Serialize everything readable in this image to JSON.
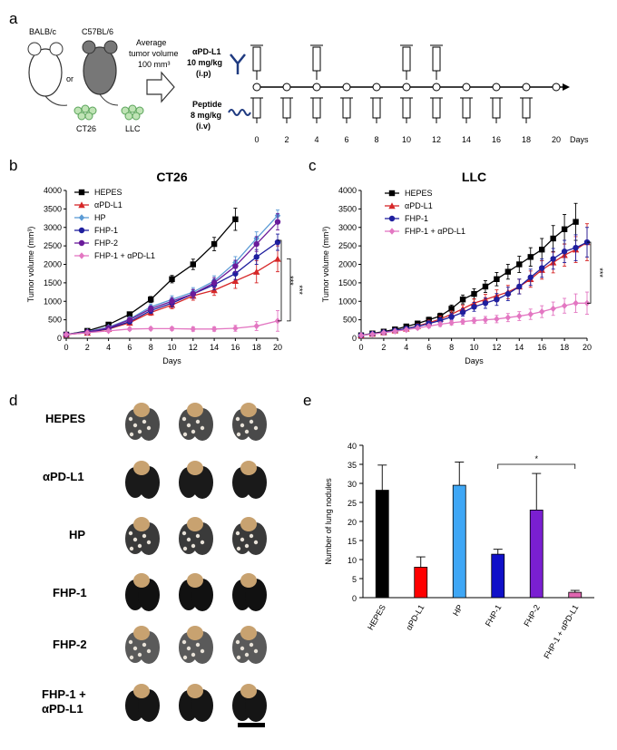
{
  "panels": {
    "a": {
      "label": "a",
      "mouse_strains": [
        "BALB/c",
        "C57BL/6"
      ],
      "or_text": "or",
      "cell_lines": [
        "CT26",
        "LLC"
      ],
      "avg_text": [
        "Average",
        "tumor volume",
        "100 mm³"
      ],
      "antibody": [
        "αPD-L1",
        "10 mg/kg",
        "(i.p)"
      ],
      "peptide": [
        "Peptide",
        "8 mg/kg",
        "(i.v)"
      ],
      "days": [
        "0",
        "2",
        "4",
        "6",
        "8",
        "10",
        "12",
        "14",
        "16",
        "18",
        "20"
      ],
      "days_label": "Days",
      "antibody_days": [
        0,
        4,
        10,
        12
      ]
    },
    "b": {
      "label": "b"
    },
    "c": {
      "label": "c"
    },
    "d": {
      "label": "d",
      "rows": [
        "HEPES",
        "αPD-L1",
        "HP",
        "FHP-1",
        "FHP-2",
        "FHP-1 +",
        "αPD-L1"
      ]
    },
    "e": {
      "label": "e"
    }
  },
  "chart_data": [
    {
      "id": "b",
      "type": "line",
      "title": "CT26",
      "xlabel": "Days",
      "ylabel": "Tumor volume (mm³)",
      "xlim": [
        0,
        20
      ],
      "ylim": [
        0,
        4000
      ],
      "xticks": [
        0,
        2,
        4,
        6,
        8,
        10,
        12,
        14,
        16,
        18,
        20
      ],
      "yticks": [
        0,
        500,
        1000,
        1500,
        2000,
        2500,
        3000,
        3500,
        4000
      ],
      "x": [
        0,
        2,
        4,
        6,
        8,
        10,
        12,
        14,
        16,
        18,
        20
      ],
      "series": [
        {
          "name": "HEPES",
          "color": "#000000",
          "marker": "square",
          "values": [
            100,
            200,
            370,
            650,
            1050,
            1600,
            2000,
            2550,
            3220,
            null,
            null
          ],
          "errors": [
            20,
            30,
            40,
            60,
            80,
            100,
            140,
            180,
            300,
            0,
            0
          ]
        },
        {
          "name": "αPD-L1",
          "color": "#d62728",
          "marker": "triangle",
          "values": [
            100,
            150,
            250,
            420,
            700,
            900,
            1150,
            1300,
            1550,
            1800,
            2150
          ],
          "errors": [
            15,
            25,
            40,
            60,
            80,
            100,
            120,
            140,
            200,
            300,
            350
          ]
        },
        {
          "name": "HP",
          "color": "#5b9bd5",
          "marker": "diamond",
          "values": [
            100,
            180,
            300,
            520,
            850,
            1050,
            1250,
            1550,
            2050,
            2700,
            3320
          ],
          "errors": [
            15,
            30,
            40,
            60,
            80,
            100,
            120,
            140,
            160,
            180,
            150
          ]
        },
        {
          "name": "FHP-1",
          "color": "#1f1f9e",
          "marker": "circle",
          "values": [
            100,
            160,
            260,
            450,
            750,
            950,
            1200,
            1450,
            1750,
            2200,
            2600
          ],
          "errors": [
            15,
            25,
            40,
            60,
            80,
            100,
            120,
            140,
            160,
            200,
            220
          ]
        },
        {
          "name": "FHP-2",
          "color": "#6a1b9a",
          "marker": "circle",
          "values": [
            100,
            170,
            280,
            500,
            800,
            1000,
            1200,
            1500,
            1950,
            2550,
            3150
          ],
          "errors": [
            15,
            25,
            40,
            60,
            80,
            100,
            120,
            140,
            160,
            200,
            220
          ]
        },
        {
          "name": "FHP-1 + αPD-L1",
          "color": "#e377c2",
          "marker": "diamond",
          "values": [
            100,
            150,
            200,
            250,
            260,
            260,
            250,
            250,
            270,
            330,
            470
          ],
          "errors": [
            15,
            20,
            30,
            40,
            40,
            50,
            60,
            60,
            80,
            120,
            280
          ]
        }
      ],
      "annotations": [
        "***",
        "***"
      ]
    },
    {
      "id": "c",
      "type": "line",
      "title": "LLC",
      "xlabel": "Days",
      "ylabel": "Tumor volume (mm³)",
      "xlim": [
        0,
        20
      ],
      "ylim": [
        0,
        4000
      ],
      "xticks": [
        0,
        2,
        4,
        6,
        8,
        10,
        12,
        14,
        16,
        18,
        20
      ],
      "yticks": [
        0,
        500,
        1000,
        1500,
        2000,
        2500,
        3000,
        3500,
        4000
      ],
      "x": [
        0,
        1,
        2,
        3,
        4,
        5,
        6,
        7,
        8,
        9,
        10,
        11,
        12,
        13,
        14,
        15,
        16,
        17,
        18,
        19,
        20
      ],
      "series": [
        {
          "name": "HEPES",
          "color": "#000000",
          "marker": "square",
          "values": [
            80,
            130,
            180,
            240,
            320,
            400,
            500,
            600,
            800,
            1050,
            1200,
            1400,
            1600,
            1800,
            2000,
            2200,
            2400,
            2700,
            2950,
            3150,
            null
          ],
          "errors": [
            20,
            30,
            30,
            40,
            50,
            60,
            70,
            80,
            100,
            120,
            140,
            160,
            180,
            200,
            220,
            250,
            300,
            350,
            400,
            500,
            0
          ]
        },
        {
          "name": "αPD-L1",
          "color": "#d62728",
          "marker": "triangle",
          "values": [
            80,
            120,
            160,
            210,
            260,
            330,
            420,
            520,
            650,
            800,
            950,
            1050,
            1150,
            1250,
            1400,
            1600,
            1850,
            2050,
            2250,
            2400,
            2600
          ],
          "errors": [
            20,
            30,
            30,
            40,
            50,
            60,
            70,
            80,
            90,
            100,
            120,
            140,
            160,
            180,
            200,
            220,
            250,
            280,
            300,
            350,
            500
          ]
        },
        {
          "name": "FHP-1",
          "color": "#1f1f9e",
          "marker": "circle",
          "values": [
            80,
            120,
            160,
            210,
            260,
            320,
            400,
            480,
            580,
            700,
            850,
            950,
            1050,
            1200,
            1400,
            1650,
            1900,
            2150,
            2350,
            2450,
            2600
          ],
          "errors": [
            20,
            30,
            30,
            40,
            50,
            60,
            70,
            80,
            90,
            100,
            120,
            140,
            160,
            180,
            200,
            220,
            250,
            280,
            300,
            350,
            400
          ]
        },
        {
          "name": "FHP-1 + αPD-L1",
          "color": "#e377c2",
          "marker": "diamond",
          "values": [
            80,
            110,
            150,
            190,
            230,
            280,
            330,
            380,
            420,
            450,
            480,
            500,
            520,
            560,
            600,
            650,
            720,
            800,
            880,
            950,
            950
          ],
          "errors": [
            20,
            20,
            30,
            30,
            40,
            40,
            50,
            60,
            60,
            70,
            80,
            90,
            100,
            110,
            120,
            140,
            160,
            180,
            200,
            250,
            300
          ]
        }
      ],
      "annotations": [
        "***"
      ]
    },
    {
      "id": "e",
      "type": "bar",
      "ylabel": "Number of lung nodules",
      "ylim": [
        0,
        40
      ],
      "yticks": [
        0,
        5,
        10,
        15,
        20,
        25,
        30,
        35,
        40
      ],
      "categories": [
        "HEPES",
        "αPD-L1",
        "HP",
        "FHP-1",
        "FHP-2",
        "FHP-1 + αPD-L1"
      ],
      "values": [
        28.2,
        8.0,
        29.5,
        11.4,
        23.0,
        1.4
      ],
      "errors": [
        6.6,
        2.7,
        6.1,
        1.3,
        9.6,
        0.5
      ],
      "colors": [
        "#000000",
        "#ff0000",
        "#3fa7f5",
        "#1010c8",
        "#7a1fd1",
        "#e066b0"
      ],
      "annotation": "*"
    }
  ],
  "scale_bar": "scale-bar"
}
